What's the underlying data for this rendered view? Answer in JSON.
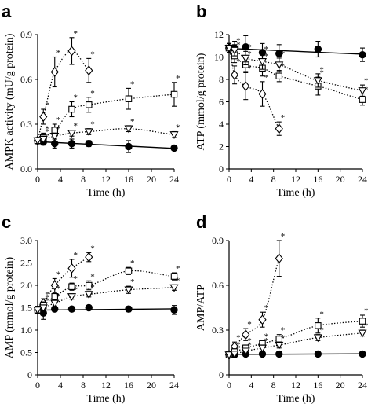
{
  "chart_data": [
    {
      "panel": "a",
      "type": "line",
      "xlabel": "Time (h)",
      "ylabel": "AMPK activity (mU/g protein)",
      "xlim": [
        0,
        24
      ],
      "ylim": [
        0,
        0.9
      ],
      "xticks": [
        0,
        4,
        8,
        12,
        16,
        20,
        24
      ],
      "yticks": [
        0,
        0.3,
        0.6,
        0.9
      ],
      "ytick_labels": [
        "0.0",
        "0.3",
        "0.6",
        "0.9"
      ],
      "series": [
        {
          "marker": "filled-circle",
          "fit": "solid",
          "x": [
            0,
            1,
            3,
            6,
            9,
            16,
            24
          ],
          "y": [
            0.19,
            0.18,
            0.17,
            0.17,
            0.17,
            0.15,
            0.14
          ],
          "err": [
            0.02,
            0.02,
            0.03,
            0.03,
            0.02,
            0.04,
            0.01
          ],
          "sig": [
            false,
            false,
            false,
            false,
            false,
            false,
            false
          ]
        },
        {
          "marker": "open-diamond",
          "fit": "dotted",
          "x": [
            0,
            1,
            3,
            6,
            9
          ],
          "y": [
            0.19,
            0.35,
            0.65,
            0.79,
            0.66
          ],
          "err": [
            0.02,
            0.05,
            0.1,
            0.09,
            0.08
          ],
          "sig": [
            false,
            true,
            true,
            true,
            true
          ]
        },
        {
          "marker": "open-square",
          "fit": "dotted",
          "x": [
            0,
            1,
            3,
            6,
            9,
            16,
            24
          ],
          "y": [
            0.19,
            0.21,
            0.26,
            0.4,
            0.43,
            0.47,
            0.5
          ],
          "err": [
            0.02,
            0.03,
            0.04,
            0.05,
            0.05,
            0.07,
            0.08
          ],
          "sig": [
            false,
            true,
            true,
            true,
            true,
            true,
            true
          ]
        },
        {
          "marker": "open-triangle-down",
          "fit": "dotted",
          "x": [
            0,
            1,
            3,
            6,
            9,
            16,
            24
          ],
          "y": [
            0.19,
            0.2,
            0.22,
            0.24,
            0.25,
            0.27,
            0.23
          ],
          "err": [
            0.02,
            0.02,
            0.02,
            0.02,
            0.02,
            0.02,
            0.02
          ],
          "sig": [
            false,
            true,
            true,
            true,
            true,
            true,
            true
          ]
        }
      ]
    },
    {
      "panel": "b",
      "type": "line",
      "xlabel": "Time (h)",
      "ylabel": "ATP (mmol/g protein)",
      "xlim": [
        0,
        24
      ],
      "ylim": [
        0,
        12
      ],
      "xticks": [
        0,
        4,
        8,
        12,
        16,
        20,
        24
      ],
      "yticks": [
        0,
        2,
        4,
        6,
        8,
        10,
        12
      ],
      "ytick_labels": [
        "0",
        "2",
        "4",
        "6",
        "8",
        "10",
        "12"
      ],
      "series": [
        {
          "marker": "filled-circle",
          "fit": "solid",
          "x": [
            0,
            1,
            3,
            6,
            9,
            16,
            24
          ],
          "y": [
            10.8,
            10.8,
            10.9,
            10.4,
            10.3,
            10.7,
            10.2
          ],
          "err": [
            0.4,
            0.6,
            1.0,
            0.8,
            0.8,
            0.7,
            0.6
          ],
          "sig": [
            false,
            false,
            false,
            false,
            false,
            false,
            false
          ]
        },
        {
          "marker": "open-diamond",
          "fit": "dotted",
          "x": [
            0,
            1,
            3,
            6,
            9
          ],
          "y": [
            10.8,
            8.4,
            7.4,
            6.7,
            3.6
          ],
          "err": [
            0.4,
            0.8,
            1.2,
            1.1,
            0.6
          ],
          "sig": [
            false,
            true,
            true,
            true,
            true
          ]
        },
        {
          "marker": "open-square",
          "fit": "dotted",
          "x": [
            0,
            1,
            3,
            6,
            9,
            16,
            24
          ],
          "y": [
            10.8,
            10.1,
            9.3,
            9.0,
            8.3,
            7.4,
            6.2
          ],
          "err": [
            0.4,
            0.6,
            0.6,
            0.7,
            0.5,
            0.8,
            0.5
          ],
          "sig": [
            false,
            true,
            true,
            true,
            true,
            true,
            true
          ]
        },
        {
          "marker": "open-triangle-down",
          "fit": "dotted",
          "x": [
            0,
            1,
            3,
            6,
            9,
            16,
            24
          ],
          "y": [
            10.8,
            10.6,
            9.9,
            9.6,
            9.3,
            7.9,
            7.0
          ],
          "err": [
            0.4,
            0.5,
            0.6,
            0.7,
            0.6,
            0.6,
            0.5
          ],
          "sig": [
            false,
            true,
            true,
            true,
            true,
            true,
            true
          ]
        }
      ]
    },
    {
      "panel": "c",
      "type": "line",
      "xlabel": "Time (h)",
      "ylabel": "AMP (mmol/g protein)",
      "xlim": [
        0,
        24
      ],
      "ylim": [
        0,
        3.0
      ],
      "xticks": [
        0,
        4,
        8,
        12,
        16,
        20,
        24
      ],
      "yticks": [
        0,
        0.5,
        1.0,
        1.5,
        2.0,
        2.5,
        3.0
      ],
      "ytick_labels": [
        "0",
        "0.5",
        "1.0",
        "1.5",
        "2.0",
        "2.5",
        "3.0"
      ],
      "series": [
        {
          "marker": "filled-circle",
          "fit": "solid",
          "x": [
            0,
            1,
            3,
            6,
            9,
            16,
            24
          ],
          "y": [
            1.45,
            1.38,
            1.47,
            1.47,
            1.5,
            1.47,
            1.45
          ],
          "err": [
            0.08,
            0.14,
            0.06,
            0.05,
            0.05,
            0.06,
            0.1
          ],
          "sig": [
            false,
            false,
            false,
            false,
            false,
            false,
            false
          ]
        },
        {
          "marker": "open-diamond",
          "fit": "dotted",
          "x": [
            0,
            1,
            3,
            6,
            9
          ],
          "y": [
            1.45,
            1.6,
            2.0,
            2.38,
            2.63
          ],
          "err": [
            0.08,
            0.1,
            0.15,
            0.2,
            0.1
          ],
          "sig": [
            false,
            true,
            true,
            true,
            true
          ]
        },
        {
          "marker": "open-square",
          "fit": "dotted",
          "x": [
            0,
            1,
            3,
            6,
            9,
            16,
            24
          ],
          "y": [
            1.45,
            1.55,
            1.75,
            1.97,
            2.0,
            2.32,
            2.2
          ],
          "err": [
            0.08,
            0.08,
            0.08,
            0.08,
            0.1,
            0.08,
            0.08
          ],
          "sig": [
            false,
            true,
            true,
            true,
            true,
            true,
            true
          ]
        },
        {
          "marker": "open-triangle-down",
          "fit": "dotted",
          "x": [
            0,
            1,
            3,
            6,
            9,
            16,
            24
          ],
          "y": [
            1.45,
            1.5,
            1.6,
            1.75,
            1.8,
            1.9,
            1.95
          ],
          "err": [
            0.08,
            0.06,
            0.06,
            0.06,
            0.06,
            0.08,
            0.06
          ],
          "sig": [
            false,
            true,
            true,
            true,
            true,
            true,
            true
          ]
        }
      ]
    },
    {
      "panel": "d",
      "type": "line",
      "xlabel": "Time (h)",
      "ylabel": "AMP/ATP",
      "xlim": [
        0,
        24
      ],
      "ylim": [
        0,
        0.9
      ],
      "xticks": [
        0,
        4,
        8,
        12,
        16,
        20,
        24
      ],
      "yticks": [
        0,
        0.3,
        0.6,
        0.9
      ],
      "ytick_labels": [
        "0",
        "0.3",
        "0.6",
        "0.9"
      ],
      "series": [
        {
          "marker": "filled-circle",
          "fit": "solid",
          "x": [
            0,
            1,
            3,
            6,
            9,
            16,
            24
          ],
          "y": [
            0.135,
            0.135,
            0.14,
            0.14,
            0.14,
            0.14,
            0.14
          ],
          "err": [
            0.01,
            0.01,
            0.01,
            0.01,
            0.01,
            0.01,
            0.01
          ],
          "sig": [
            false,
            false,
            false,
            false,
            false,
            false,
            false
          ]
        },
        {
          "marker": "open-diamond",
          "fit": "dotted",
          "x": [
            0,
            1,
            3,
            6,
            9
          ],
          "y": [
            0.135,
            0.19,
            0.27,
            0.37,
            0.78
          ],
          "err": [
            0.01,
            0.03,
            0.04,
            0.05,
            0.12
          ],
          "sig": [
            false,
            true,
            true,
            true,
            true
          ]
        },
        {
          "marker": "open-square",
          "fit": "dotted",
          "x": [
            0,
            1,
            3,
            6,
            9,
            16,
            24
          ],
          "y": [
            0.135,
            0.155,
            0.18,
            0.21,
            0.24,
            0.33,
            0.36
          ],
          "err": [
            0.01,
            0.02,
            0.02,
            0.02,
            0.03,
            0.05,
            0.04
          ],
          "sig": [
            false,
            true,
            true,
            true,
            true,
            true,
            true
          ]
        },
        {
          "marker": "open-triangle-down",
          "fit": "dotted",
          "x": [
            0,
            1,
            3,
            6,
            9,
            16,
            24
          ],
          "y": [
            0.135,
            0.14,
            0.16,
            0.18,
            0.2,
            0.25,
            0.28
          ],
          "err": [
            0.01,
            0.01,
            0.01,
            0.02,
            0.02,
            0.02,
            0.02
          ],
          "sig": [
            false,
            true,
            true,
            true,
            true,
            true,
            true
          ]
        }
      ]
    }
  ],
  "significance_marker": "*"
}
